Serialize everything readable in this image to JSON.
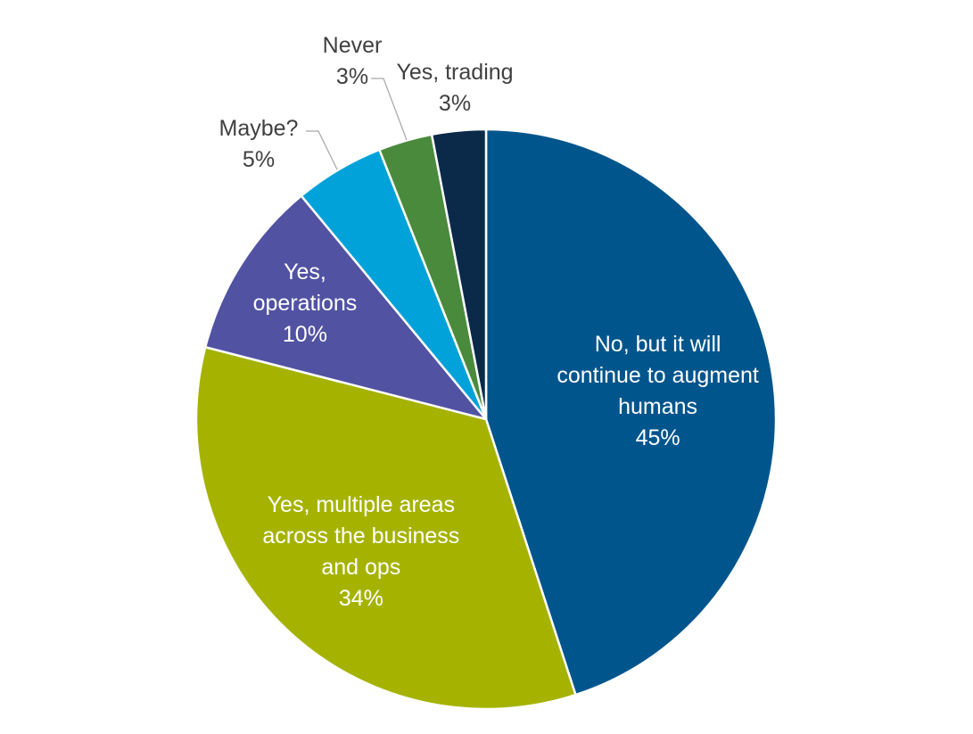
{
  "chart_data": {
    "type": "pie",
    "slices": [
      {
        "label_lines": [
          "No, but it will",
          "continue to augment",
          "humans"
        ],
        "pct_label": "45%",
        "value": 45,
        "color": "#00558c"
      },
      {
        "label_lines": [
          "Yes, multiple areas",
          "across the business",
          "and ops"
        ],
        "pct_label": "34%",
        "value": 34,
        "color": "#a5b300"
      },
      {
        "label_lines": [
          "Yes,",
          "operations"
        ],
        "pct_label": "10%",
        "value": 10,
        "color": "#5252a3"
      },
      {
        "label_lines": [
          "Maybe?"
        ],
        "pct_label": "5%",
        "value": 5,
        "color": "#00a2d9"
      },
      {
        "label_lines": [
          "Never"
        ],
        "pct_label": "3%",
        "value": 3,
        "color": "#4a8a3c"
      },
      {
        "label_lines": [
          "Yes, trading"
        ],
        "pct_label": "3%",
        "value": 3,
        "color": "#0b2a4a"
      }
    ]
  }
}
